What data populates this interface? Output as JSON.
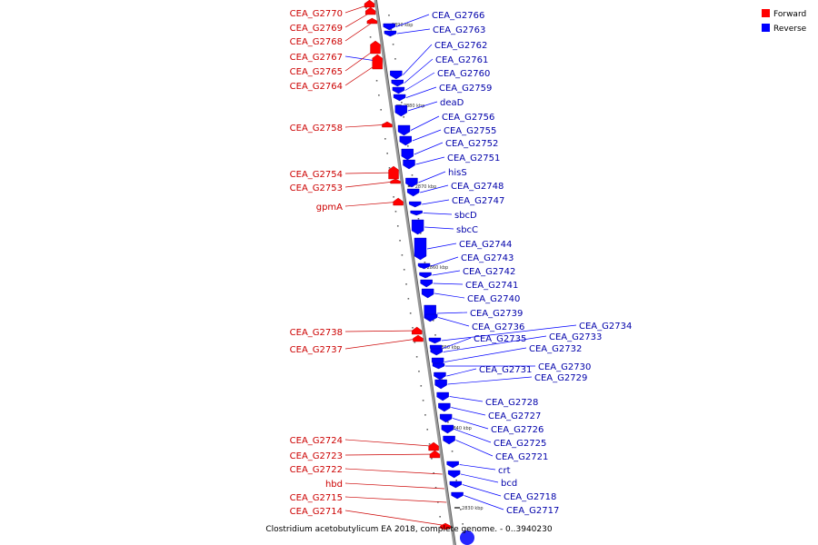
{
  "caption": "Clostridium acetobutylicum EA 2018, complete genome. - 0..3940230",
  "legend": [
    {
      "label": "Forward",
      "color": "#ff0000"
    },
    {
      "label": "Reverse",
      "color": "#0000ff"
    }
  ],
  "colors": {
    "forward": "#ff0000",
    "reverse": "#0000ff",
    "backbone": "#999999",
    "label_forward": "#cc0000",
    "label_reverse": "#0000aa"
  },
  "kbp_marks": [
    "2890 kbp",
    "2880 kbp",
    "2870 kbp",
    "2860 kbp",
    "2850 kbp",
    "2840 kbp",
    "2830 kbp"
  ],
  "forward_genes": [
    "CEA_G2770",
    "CEA_G2769",
    "CEA_G2768",
    "CEA_G2767",
    "CEA_G2765",
    "CEA_G2764",
    "CEA_G2758",
    "CEA_G2754",
    "CEA_G2753",
    "gpmA",
    "CEA_G2738",
    "CEA_G2737",
    "CEA_G2724",
    "CEA_G2723",
    "CEA_G2722",
    "hbd",
    "CEA_G2715",
    "CEA_G2714"
  ],
  "reverse_genes": [
    "CEA_G2766",
    "CEA_G2763",
    "CEA_G2762",
    "CEA_G2761",
    "CEA_G2760",
    "CEA_G2759",
    "deaD",
    "CEA_G2756",
    "CEA_G2755",
    "CEA_G2752",
    "CEA_G2751",
    "hisS",
    "CEA_G2748",
    "CEA_G2747",
    "sbcD",
    "sbcC",
    "CEA_G2744",
    "CEA_G2743",
    "CEA_G2742",
    "CEA_G2741",
    "CEA_G2740",
    "CEA_G2739",
    "CEA_G2736",
    "CEA_G2734",
    "CEA_G2735",
    "CEA_G2733",
    "CEA_G2732",
    "CEA_G2730",
    "CEA_G2731",
    "CEA_G2729",
    "CEA_G2728",
    "CEA_G2727",
    "CEA_G2726",
    "CEA_G2725",
    "CEA_G2721",
    "crt",
    "bcd",
    "CEA_G2718",
    "CEA_G2717"
  ]
}
